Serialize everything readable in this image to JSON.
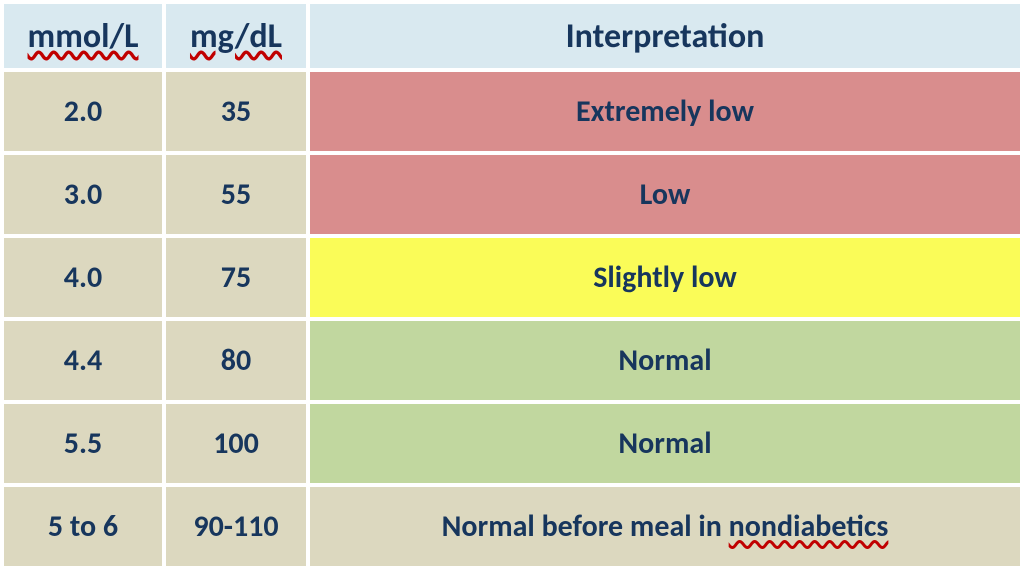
{
  "table": {
    "header_bg": "#d9e9f0",
    "value_bg": "#dcd8bf",
    "interp_colors": {
      "extremely_low": "#d98d8d",
      "low": "#d98d8d",
      "slightly_low": "#fafc58",
      "normal": "#c1d79f",
      "normal_before_meal": "#dcd8bf"
    },
    "columns": {
      "mmol": "mmol/L",
      "mgdl": "mg/dL",
      "interp": "Interpretation"
    },
    "rows": [
      {
        "mmol": "2.0",
        "mgdl": "35",
        "interp": "Extremely low",
        "color_key": "extremely_low"
      },
      {
        "mmol": "3.0",
        "mgdl": "55",
        "interp": "Low",
        "color_key": "low"
      },
      {
        "mmol": "4.0",
        "mgdl": "75",
        "interp": "Slightly low",
        "color_key": "slightly_low"
      },
      {
        "mmol": "4.4",
        "mgdl": "80",
        "interp": "Normal",
        "color_key": "normal"
      },
      {
        "mmol": "5.5",
        "mgdl": "100",
        "interp": "Normal",
        "color_key": "normal"
      },
      {
        "mmol": "5 to 6",
        "mgdl": "90-110",
        "interp": "Normal before meal in ",
        "interp_suffix_spellerr": "nondiabetics",
        "color_key": "normal_before_meal"
      }
    ],
    "header_row_height": 64,
    "body_row_height": 79
  }
}
